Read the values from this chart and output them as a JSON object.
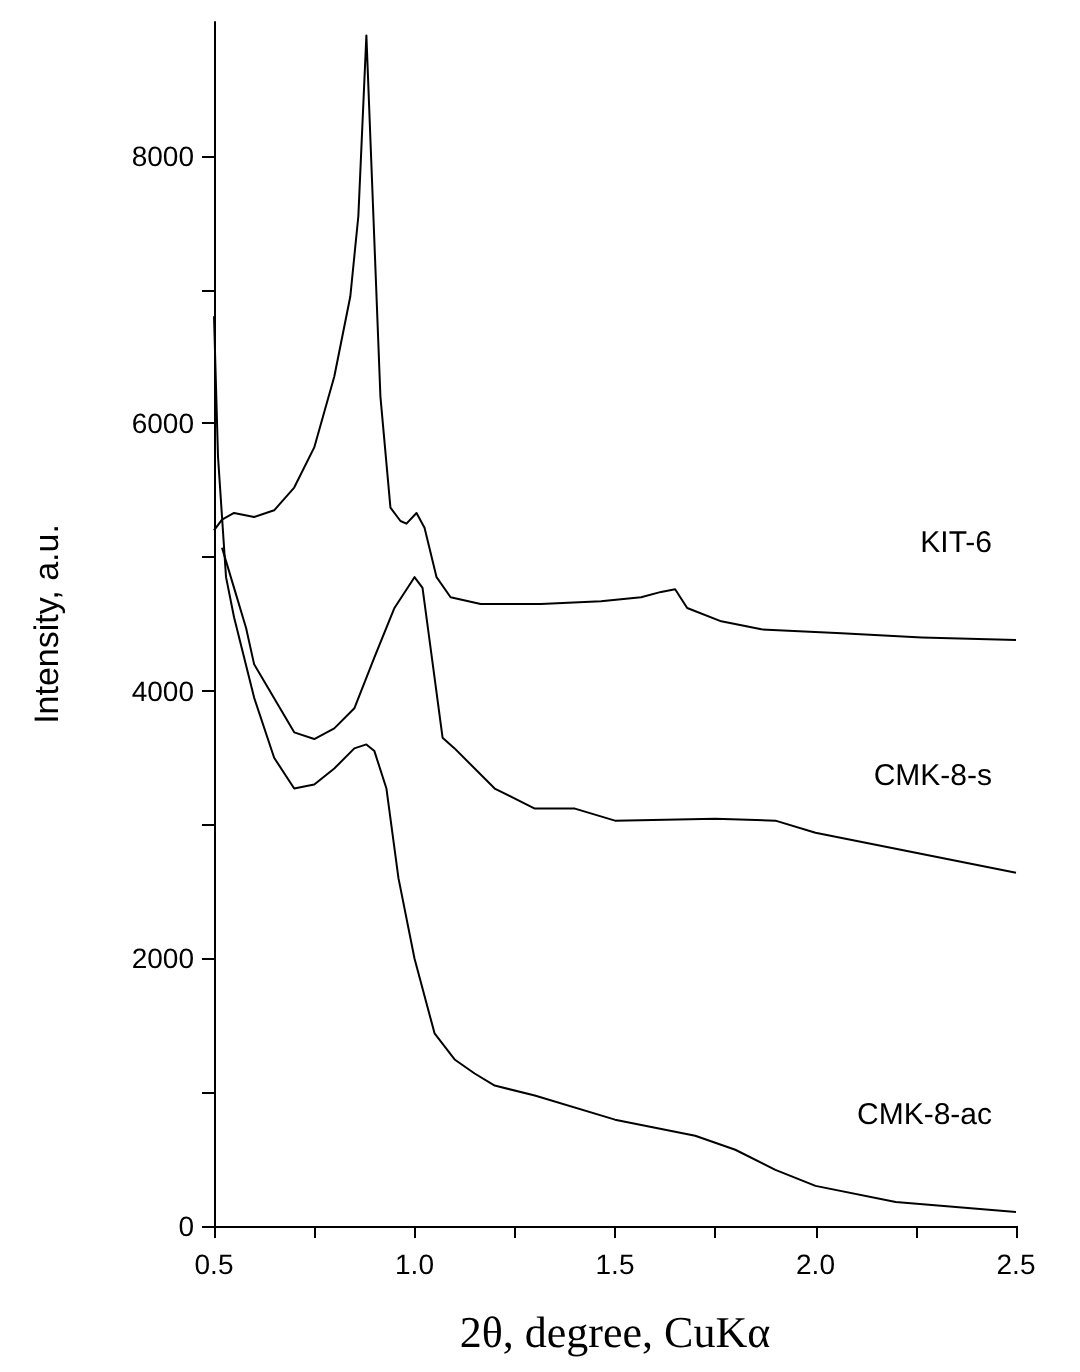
{
  "chart_data": {
    "type": "line",
    "xlabel": "2θ, degree, CuKα",
    "ylabel": "Intensity, a.u.",
    "xlim": [
      0.5,
      2.5
    ],
    "ylim": [
      0,
      9000
    ],
    "xticks": [
      {
        "value": 0.5,
        "label": "0.5"
      },
      {
        "value": 0.75,
        "label": null
      },
      {
        "value": 1.0,
        "label": "1.0"
      },
      {
        "value": 1.25,
        "label": null
      },
      {
        "value": 1.5,
        "label": "1.5"
      },
      {
        "value": 1.75,
        "label": null
      },
      {
        "value": 2.0,
        "label": "2.0"
      },
      {
        "value": 2.25,
        "label": null
      },
      {
        "value": 2.5,
        "label": "2.5"
      }
    ],
    "yticks": [
      0,
      {
        "value": 1000,
        "label": null
      },
      2000,
      {
        "value": 3000,
        "label": null
      },
      4000,
      {
        "value": 5000,
        "label": null
      },
      6000,
      {
        "value": 7000,
        "label": null
      },
      8000
    ],
    "grid": false,
    "legend": false,
    "marker": "none",
    "line_style": "solid",
    "series": [
      {
        "name": "KIT-6",
        "color": "#000000",
        "x": [
          0.5,
          0.52,
          0.55,
          0.6,
          0.65,
          0.7,
          0.75,
          0.8,
          0.84,
          0.86,
          0.88,
          0.915,
          0.94,
          0.965,
          0.98,
          1.005,
          1.025,
          1.055,
          1.09,
          1.165,
          1.315,
          1.465,
          1.565,
          1.615,
          1.65,
          1.68,
          1.765,
          1.865,
          2.065,
          2.265,
          2.5
        ],
        "values": [
          5200,
          5280,
          5330,
          5300,
          5350,
          5520,
          5820,
          6350,
          6950,
          7550,
          8900,
          6200,
          5370,
          5270,
          5250,
          5330,
          5220,
          4850,
          4700,
          4650,
          4650,
          4670,
          4700,
          4740,
          4760,
          4620,
          4520,
          4460,
          4430,
          4400,
          4380
        ]
      },
      {
        "name": "CMK-8-s",
        "color": "#000000",
        "x": [
          0.52,
          0.55,
          0.58,
          0.6,
          0.7,
          0.75,
          0.8,
          0.85,
          0.9,
          0.95,
          1.0,
          1.02,
          1.05,
          1.07,
          1.1,
          1.2,
          1.3,
          1.4,
          1.5,
          1.75,
          1.9,
          2.0,
          2.25,
          2.5
        ],
        "values": [
          5070,
          4770,
          4470,
          4200,
          3690,
          3640,
          3720,
          3870,
          4250,
          4620,
          4850,
          4770,
          4100,
          3650,
          3570,
          3270,
          3120,
          3120,
          3030,
          3045,
          3030,
          2940,
          2790,
          2640
        ]
      },
      {
        "name": "CMK-8-ac",
        "color": "#000000",
        "x": [
          0.5,
          0.51,
          0.53,
          0.55,
          0.6,
          0.65,
          0.7,
          0.75,
          0.8,
          0.85,
          0.88,
          0.9,
          0.93,
          0.96,
          1.0,
          1.05,
          1.1,
          1.15,
          1.2,
          1.3,
          1.5,
          1.7,
          1.8,
          1.9,
          2.0,
          2.2,
          2.5
        ],
        "values": [
          6800,
          5750,
          4850,
          4550,
          3950,
          3500,
          3270,
          3300,
          3420,
          3570,
          3600,
          3550,
          3270,
          2600,
          2000,
          1440,
          1245,
          1140,
          1050,
          975,
          795,
          675,
          570,
          420,
          300,
          180,
          105
        ]
      }
    ]
  }
}
